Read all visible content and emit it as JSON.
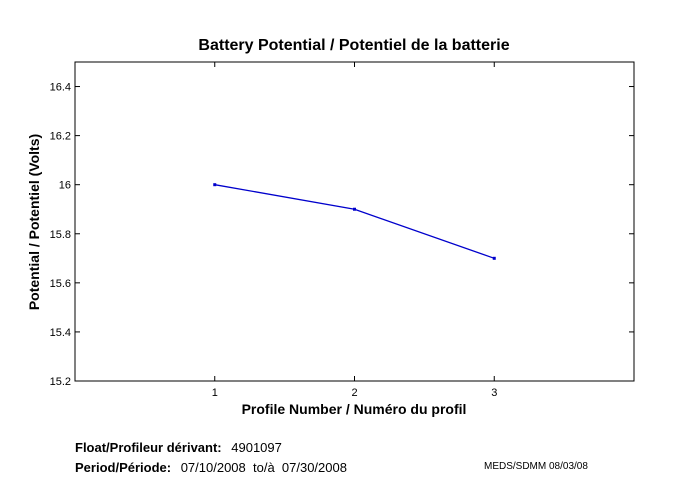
{
  "chart_data": {
    "type": "line",
    "title": "Battery Potential / Potentiel de la batterie",
    "xlabel": "Profile Number / Numéro du profil",
    "ylabel": "Potential / Potentiel (Volts)",
    "x": [
      1,
      2,
      3
    ],
    "series": [
      {
        "values": [
          16.0,
          15.9,
          15.7
        ],
        "color": "#0000cc"
      }
    ],
    "xlim": [
      0,
      4
    ],
    "ylim": [
      15.2,
      16.5
    ],
    "x_ticks": [
      1,
      2,
      3
    ],
    "x_tick_labels": [
      "1",
      "2",
      "3"
    ],
    "y_ticks": [
      15.2,
      15.4,
      15.6,
      15.8,
      16.0,
      16.2,
      16.4
    ],
    "y_tick_labels": [
      "15.2",
      "15.4",
      "15.6",
      "15.8",
      "16",
      "16.2",
      "16.4"
    ],
    "grid": false,
    "legend": "none"
  },
  "footer": {
    "float_label": "Float/Profileur dérivant:",
    "float_value": "4901097",
    "period_label": "Period/Période:",
    "period_value": "07/10/2008  to/à  07/30/2008",
    "credit": "MEDS/SDMM  08/03/08"
  }
}
